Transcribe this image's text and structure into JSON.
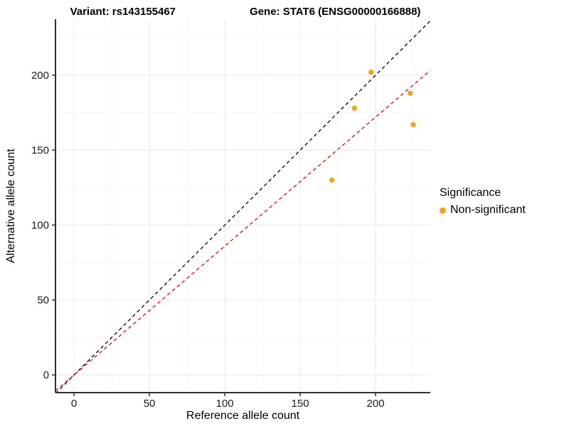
{
  "title": {
    "left": "Variant: rs143155467",
    "right": "Gene: STAT6 (ENSG00000166888)"
  },
  "chart_data": {
    "type": "scatter",
    "title": "Variant: rs143155467   Gene: STAT6 (ENSG00000166888)",
    "xlabel": "Reference allele count",
    "ylabel": "Alternative allele count",
    "xlim": [
      -12.3,
      236.3
    ],
    "ylim": [
      -11.8,
      237.4
    ],
    "x_ticks": [
      0,
      50,
      100,
      150,
      200
    ],
    "y_ticks": [
      0,
      50,
      100,
      150,
      200
    ],
    "x_minor_ticks": [
      25,
      75,
      125,
      175,
      225
    ],
    "y_minor_ticks": [
      25,
      75,
      125,
      175,
      225
    ],
    "grid": true,
    "legend_position": "right",
    "series": [
      {
        "name": "Non-significant",
        "color": "#F9A01B",
        "points": [
          {
            "x": 197,
            "y": 202
          },
          {
            "x": 186,
            "y": 178
          },
          {
            "x": 171,
            "y": 130
          },
          {
            "x": 223,
            "y": 188
          },
          {
            "x": 225,
            "y": 167
          }
        ]
      }
    ],
    "lines": [
      {
        "name": "identity-line",
        "slope": 1,
        "intercept": 0,
        "color": "#000000",
        "dash": "5,4"
      },
      {
        "name": "regression-line",
        "slope": 0.86,
        "intercept": 0,
        "color": "#FF0000",
        "dash": "5,4"
      }
    ],
    "legend": {
      "title": "Significance",
      "items": [
        {
          "label": "Non-significant",
          "color": "#F9A01B"
        }
      ]
    },
    "style": {
      "major_grid_color": "#E9E9E9",
      "minor_grid_color": "#F4F4F4",
      "axis_line_color": "#2F2F2F",
      "tick_label_color": "#1A1A1A",
      "point_radius": 3.7
    }
  }
}
